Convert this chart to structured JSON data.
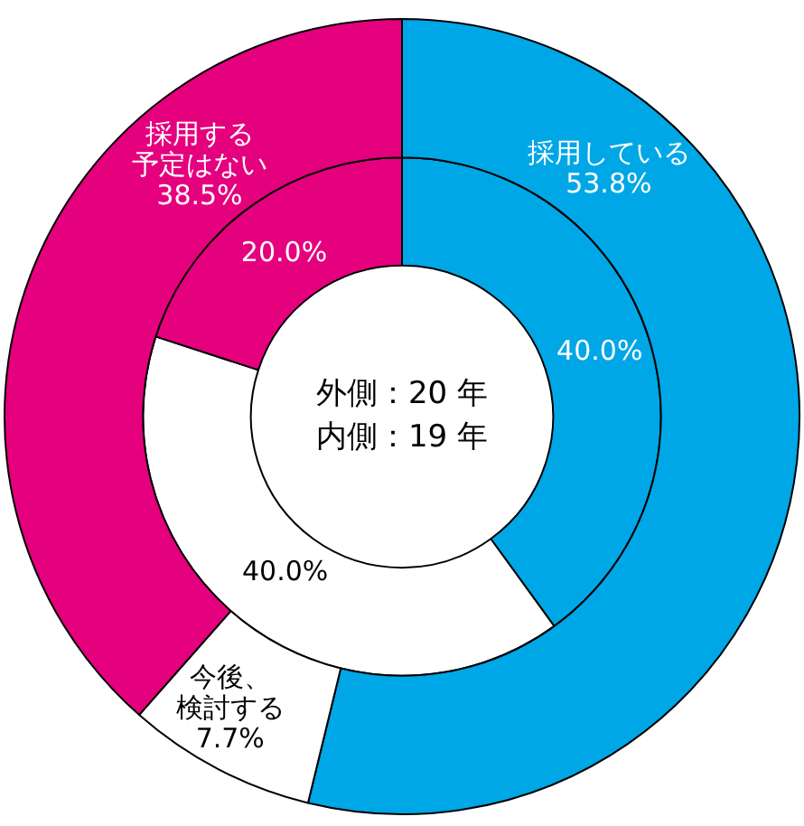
{
  "chart_data": {
    "type": "donut",
    "categories": [
      "採用している",
      "今後、検討する",
      "採用する予定はない"
    ],
    "series": [
      {
        "values": [
          53.8,
          7.7,
          38.5
        ],
        "colors": [
          "#00a7e6",
          "#ffffff",
          "#e5007e"
        ],
        "value_labels": [
          "53.8%",
          "7.7%",
          "38.5%"
        ]
      },
      {
        "values": [
          40.0,
          40.0,
          20.0
        ],
        "colors": [
          "#00a7e6",
          "#ffffff",
          "#e5007e"
        ],
        "value_labels": [
          "40.0%",
          "40.0%",
          "20.0%"
        ]
      }
    ],
    "annotations": [
      "外側：20 年",
      "内側：19 年"
    ],
    "legend": false
  }
}
